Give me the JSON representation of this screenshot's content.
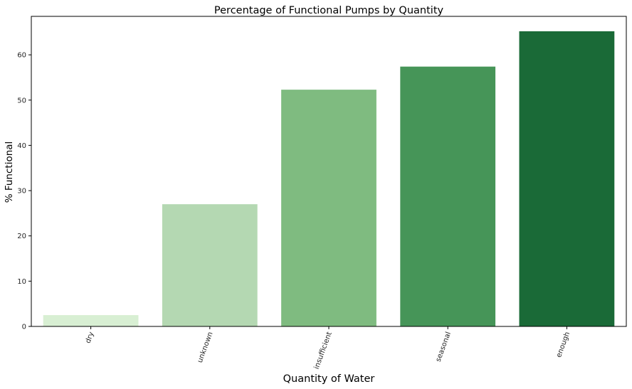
{
  "chart_data": {
    "type": "bar",
    "title": "Percentage of Functional Pumps by Quantity",
    "xlabel": "Quantity of Water",
    "ylabel": "% Functional",
    "categories": [
      "dry",
      "unknown",
      "insufficient",
      "seasonal",
      "enough"
    ],
    "values": [
      2.5,
      27.0,
      52.3,
      57.4,
      65.2
    ],
    "ylim": [
      0,
      68.5
    ],
    "yticks": [
      0,
      10,
      20,
      30,
      40,
      50,
      60
    ],
    "grid": false,
    "legend": "none",
    "bar_colors": [
      "#d8efd3",
      "#b4d8b2",
      "#7fbb80",
      "#469558",
      "#1a6a37"
    ]
  }
}
